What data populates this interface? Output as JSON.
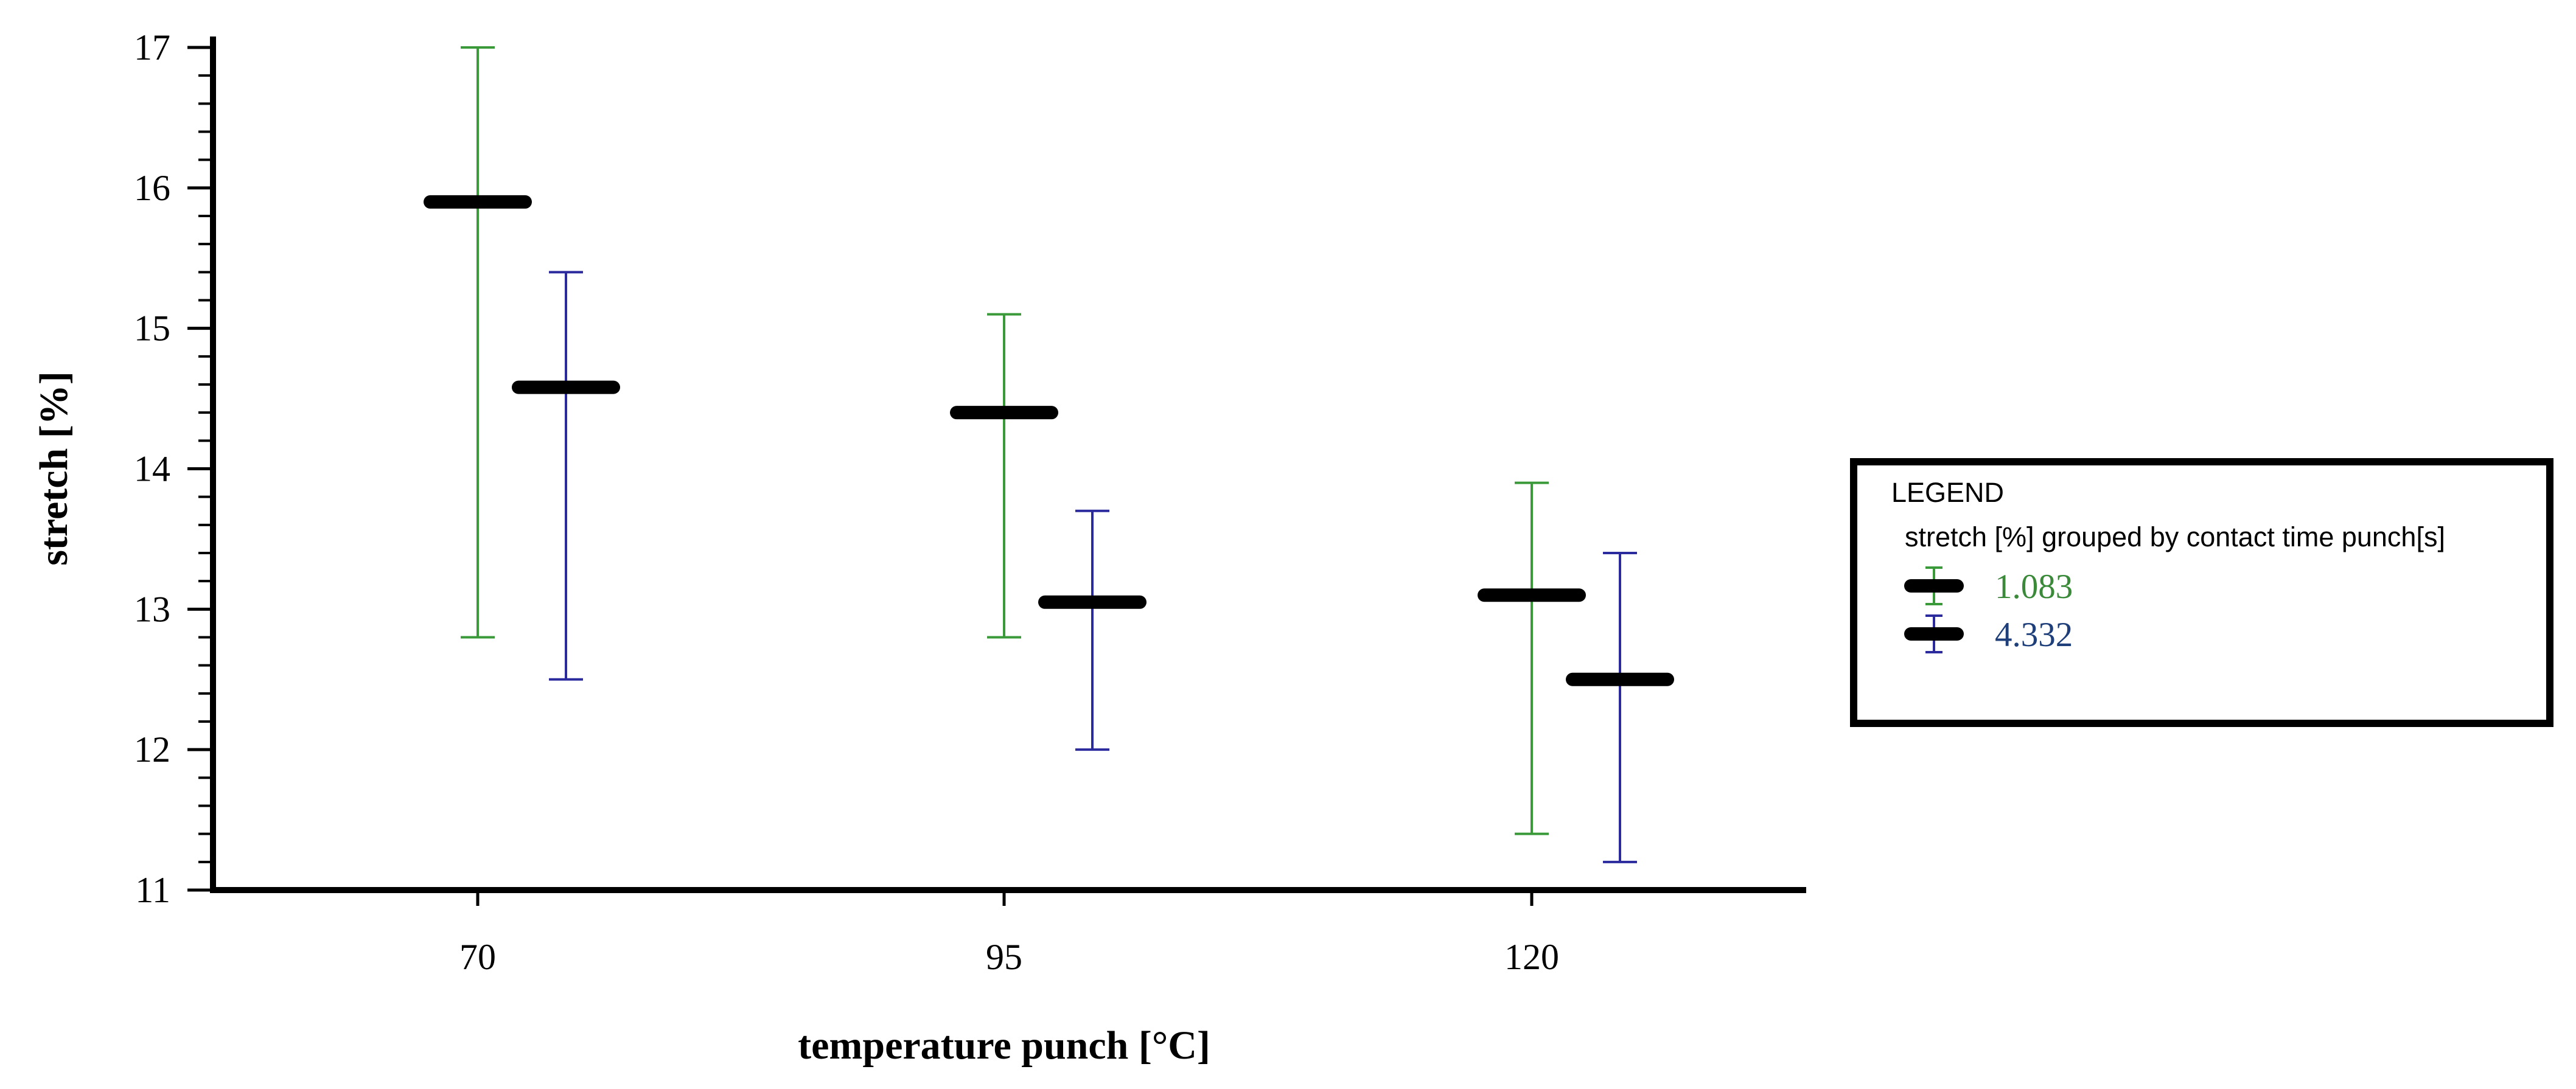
{
  "chart_data": {
    "type": "scatter",
    "subtype": "mean-with-error-bars",
    "xlabel": "temperature punch [°C]",
    "ylabel": "stretch [%]",
    "categories": [
      "70",
      "95",
      "120"
    ],
    "ylim": [
      11,
      17
    ],
    "yticks": [
      11,
      12,
      13,
      14,
      15,
      16,
      17
    ],
    "grid": false,
    "legend": {
      "title": "LEGEND",
      "subtitle": "stretch [%] grouped by contact time punch[s]",
      "position": "right"
    },
    "series": [
      {
        "name": "1.083",
        "color": "#3a9a3a",
        "mean": [
          15.9,
          14.4,
          13.1
        ],
        "low": [
          12.8,
          12.8,
          11.4
        ],
        "high": [
          17.0,
          15.1,
          13.9
        ]
      },
      {
        "name": "4.332",
        "color": "#2b2b9e",
        "mean": [
          14.58,
          13.05,
          12.5
        ],
        "low": [
          12.5,
          12.0,
          11.2
        ],
        "high": [
          15.4,
          13.7,
          13.4
        ]
      }
    ],
    "mean_marker_color": "#000000",
    "legend_label_colors": [
      "#3a8a3a",
      "#1f3f7a"
    ]
  }
}
